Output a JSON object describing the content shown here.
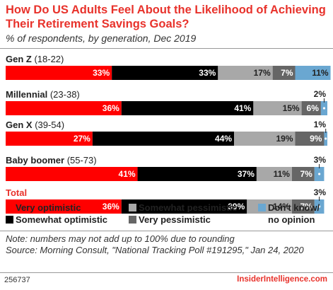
{
  "header": {
    "title": "How Do US Adults Feel About the Likelihood of Achieving Their Retirement Savings Goals?",
    "subtitle": "% of respondents, by generation, Dec 2019"
  },
  "chart_data": {
    "type": "bar",
    "stacked": true,
    "orientation": "horizontal",
    "categories": [
      "Gen Z (18-22)",
      "Millennial (23-38)",
      "Gen X (39-54)",
      "Baby boomer (55-73)",
      "Total"
    ],
    "category_labels": [
      "Gen Z",
      "Millennial",
      "Gen X",
      "Baby boomer",
      "Total"
    ],
    "category_ranges": [
      "(18-22)",
      "(23-38)",
      "(39-54)",
      "(55-73)",
      ""
    ],
    "series": [
      {
        "name": "Very optimistic",
        "color": "#ff0000",
        "values": [
          33,
          36,
          27,
          41,
          36
        ]
      },
      {
        "name": "Somewhat optimistic",
        "color": "#000000",
        "values": [
          33,
          41,
          44,
          37,
          39
        ]
      },
      {
        "name": "Somewhat pessimistic",
        "color": "#a8a8a8",
        "values": [
          17,
          15,
          19,
          11,
          14
        ]
      },
      {
        "name": "Very pessimistic",
        "color": "#666666",
        "values": [
          7,
          6,
          9,
          7,
          7
        ]
      },
      {
        "name": "Don't know/ no opinion",
        "color": "#6aa7d1",
        "values": [
          11,
          2,
          1,
          3,
          3
        ]
      }
    ],
    "xlim": [
      0,
      100
    ],
    "value_suffix": "%"
  },
  "legend": {
    "items": [
      {
        "label": "Very optimistic",
        "color": "#ff0000"
      },
      {
        "label": "Somewhat optimistic",
        "color": "#000000"
      },
      {
        "label": "Somewhat pessimistic",
        "color": "#a8a8a8"
      },
      {
        "label": "Very pessimistic",
        "color": "#666666"
      },
      {
        "label": "Don't know/",
        "label2": "no opinion",
        "color": "#6aa7d1"
      }
    ]
  },
  "footer": {
    "note": "Note: numbers may not add up to 100% due to rounding",
    "source": "Source: Morning Consult, \"National Tracking Poll #191295,\" Jan 24, 2020",
    "id": "256737",
    "brand": "InsiderIntelligence.com"
  }
}
